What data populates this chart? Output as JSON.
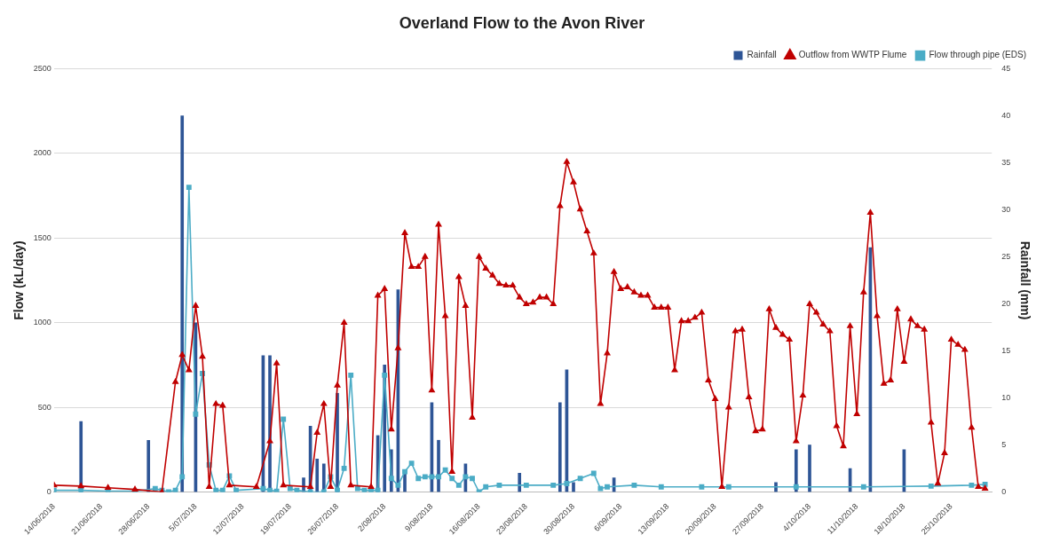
{
  "chart_data": {
    "type": "line",
    "title": "Overland Flow to the Avon River",
    "ylabel": "Flow (kL/day)",
    "y2label": "Rainfall (mm)",
    "xlim": [
      "2018-06-14",
      "2018-10-31"
    ],
    "xticks": [
      {
        "value": "2018-06-14",
        "label": "14/06/2018"
      },
      {
        "value": "2018-06-21",
        "label": "21/06/2018"
      },
      {
        "value": "2018-06-28",
        "label": "28/06/2018"
      },
      {
        "value": "2018-07-05",
        "label": "5/07/2018"
      },
      {
        "value": "2018-07-12",
        "label": "12/07/2018"
      },
      {
        "value": "2018-07-19",
        "label": "19/07/2018"
      },
      {
        "value": "2018-07-26",
        "label": "26/07/2018"
      },
      {
        "value": "2018-08-02",
        "label": "2/08/2018"
      },
      {
        "value": "2018-08-09",
        "label": "9/08/2018"
      },
      {
        "value": "2018-08-16",
        "label": "16/08/2018"
      },
      {
        "value": "2018-08-23",
        "label": "23/08/2018"
      },
      {
        "value": "2018-08-30",
        "label": "30/08/2018"
      },
      {
        "value": "2018-09-06",
        "label": "6/09/2018"
      },
      {
        "value": "2018-09-13",
        "label": "13/09/2018"
      },
      {
        "value": "2018-09-20",
        "label": "20/09/2018"
      },
      {
        "value": "2018-09-27",
        "label": "27/09/2018"
      },
      {
        "value": "2018-10-04",
        "label": "4/10/2018"
      },
      {
        "value": "2018-10-11",
        "label": "11/10/2018"
      },
      {
        "value": "2018-10-18",
        "label": "18/10/2018"
      },
      {
        "value": "2018-10-25",
        "label": "25/10/2018"
      }
    ],
    "ylim": [
      0,
      2500
    ],
    "yticks": [
      0,
      500,
      1000,
      1500,
      2000,
      2500
    ],
    "y2lim": [
      0,
      45
    ],
    "y2ticks": [
      0,
      5,
      10,
      15,
      20,
      25,
      30,
      35,
      40,
      45
    ],
    "grid": "y",
    "legend": "top right",
    "series": [
      {
        "name": "Rainfall",
        "type": "bar",
        "axis": "y2",
        "color": "#2e5596",
        "x": [
          "2018-06-18",
          "2018-06-28",
          "2018-07-02",
          "2018-07-03",
          "2018-07-05",
          "2018-07-15",
          "2018-07-16",
          "2018-07-21",
          "2018-07-22",
          "2018-07-23",
          "2018-07-24",
          "2018-07-26",
          "2018-08-01",
          "2018-08-02",
          "2018-08-03",
          "2018-08-04",
          "2018-08-05",
          "2018-08-09",
          "2018-08-10",
          "2018-08-14",
          "2018-08-17",
          "2018-08-22",
          "2018-08-28",
          "2018-08-29",
          "2018-08-30",
          "2018-09-05",
          "2018-09-29",
          "2018-10-02",
          "2018-10-04",
          "2018-10-10",
          "2018-10-13",
          "2018-10-18"
        ],
        "values": [
          7.5,
          5.5,
          null,
          40,
          18,
          14.5,
          14.5,
          1.5,
          7,
          3.5,
          3,
          10.5,
          6,
          13.5,
          4.5,
          21.5,
          2,
          9.5,
          5.5,
          3,
          null,
          2,
          9.5,
          13,
          1,
          1.5,
          1,
          4.5,
          5,
          2.5,
          26,
          4.5
        ]
      },
      {
        "name": "Outflow from WWTP Flume",
        "type": "line",
        "marker": "triangle",
        "color": "#c00000",
        "x": [
          "2018-06-14",
          "2018-06-18",
          "2018-06-22",
          "2018-06-26",
          "2018-06-30",
          "2018-07-02",
          "2018-07-03",
          "2018-07-04",
          "2018-07-05",
          "2018-07-06",
          "2018-07-07",
          "2018-07-08",
          "2018-07-09",
          "2018-07-10",
          "2018-07-14",
          "2018-07-16",
          "2018-07-17",
          "2018-07-18",
          "2018-07-22",
          "2018-07-23",
          "2018-07-24",
          "2018-07-25",
          "2018-07-26",
          "2018-07-27",
          "2018-07-28",
          "2018-07-31",
          "2018-08-01",
          "2018-08-02",
          "2018-08-03",
          "2018-08-04",
          "2018-08-05",
          "2018-08-06",
          "2018-08-07",
          "2018-08-08",
          "2018-08-09",
          "2018-08-10",
          "2018-08-11",
          "2018-08-12",
          "2018-08-13",
          "2018-08-14",
          "2018-08-15",
          "2018-08-16",
          "2018-08-17",
          "2018-08-18",
          "2018-08-19",
          "2018-08-20",
          "2018-08-21",
          "2018-08-22",
          "2018-08-23",
          "2018-08-24",
          "2018-08-25",
          "2018-08-26",
          "2018-08-27",
          "2018-08-28",
          "2018-08-29",
          "2018-08-30",
          "2018-08-31",
          "2018-09-01",
          "2018-09-02",
          "2018-09-03",
          "2018-09-04",
          "2018-09-05",
          "2018-09-06",
          "2018-09-07",
          "2018-09-08",
          "2018-09-09",
          "2018-09-10",
          "2018-09-11",
          "2018-09-12",
          "2018-09-13",
          "2018-09-14",
          "2018-09-15",
          "2018-09-16",
          "2018-09-17",
          "2018-09-18",
          "2018-09-19",
          "2018-09-20",
          "2018-09-21",
          "2018-09-22",
          "2018-09-23",
          "2018-09-24",
          "2018-09-25",
          "2018-09-26",
          "2018-09-27",
          "2018-09-28",
          "2018-09-29",
          "2018-09-30",
          "2018-10-01",
          "2018-10-02",
          "2018-10-03",
          "2018-10-04",
          "2018-10-05",
          "2018-10-06",
          "2018-10-07",
          "2018-10-08",
          "2018-10-09",
          "2018-10-10",
          "2018-10-11",
          "2018-10-12",
          "2018-10-13",
          "2018-10-14",
          "2018-10-15",
          "2018-10-16",
          "2018-10-17",
          "2018-10-18",
          "2018-10-19",
          "2018-10-20",
          "2018-10-21",
          "2018-10-22",
          "2018-10-23",
          "2018-10-24",
          "2018-10-25",
          "2018-10-26",
          "2018-10-27",
          "2018-10-28",
          "2018-10-29",
          "2018-10-30"
        ],
        "values": [
          40,
          35,
          25,
          15,
          0,
          650,
          810,
          720,
          1100,
          800,
          30,
          520,
          510,
          40,
          30,
          300,
          760,
          40,
          30,
          350,
          520,
          30,
          630,
          1000,
          40,
          30,
          1160,
          1200,
          370,
          850,
          1530,
          1330,
          1330,
          1390,
          600,
          1580,
          1040,
          120,
          1270,
          1100,
          440,
          1390,
          1320,
          1280,
          1230,
          1220,
          1220,
          1150,
          1110,
          1120,
          1150,
          1150,
          1110,
          1690,
          1950,
          1830,
          1670,
          1540,
          1410,
          520,
          820,
          1300,
          1200,
          1210,
          1180,
          1160,
          1160,
          1090,
          1090,
          1090,
          720,
          1010,
          1010,
          1030,
          1060,
          660,
          550,
          30,
          500,
          950,
          960,
          560,
          360,
          370,
          1080,
          970,
          930,
          900,
          300,
          570,
          1110,
          1060,
          990,
          950,
          390,
          270,
          980,
          460,
          1180,
          1650,
          1040,
          640,
          660,
          1080,
          770,
          1020,
          980,
          960,
          410,
          50,
          230,
          900,
          870,
          840,
          380,
          30,
          20
        ]
      },
      {
        "name": "Flow through pipe (EDS)",
        "type": "line",
        "marker": "square",
        "color": "#4bacc6",
        "x": [
          "2018-06-14",
          "2018-06-18",
          "2018-06-22",
          "2018-06-26",
          "2018-06-29",
          "2018-06-30",
          "2018-07-01",
          "2018-07-02",
          "2018-07-03",
          "2018-07-04",
          "2018-07-05",
          "2018-07-06",
          "2018-07-07",
          "2018-07-08",
          "2018-07-09",
          "2018-07-10",
          "2018-07-11",
          "2018-07-15",
          "2018-07-16",
          "2018-07-17",
          "2018-07-18",
          "2018-07-19",
          "2018-07-20",
          "2018-07-22",
          "2018-07-24",
          "2018-07-25",
          "2018-07-26",
          "2018-07-27",
          "2018-07-28",
          "2018-07-29",
          "2018-07-30",
          "2018-07-31",
          "2018-08-01",
          "2018-08-02",
          "2018-08-03",
          "2018-08-04",
          "2018-08-05",
          "2018-08-06",
          "2018-08-07",
          "2018-08-08",
          "2018-08-09",
          "2018-08-10",
          "2018-08-11",
          "2018-08-12",
          "2018-08-13",
          "2018-08-14",
          "2018-08-15",
          "2018-08-16",
          "2018-08-17",
          "2018-08-19",
          "2018-08-23",
          "2018-08-27",
          "2018-08-29",
          "2018-08-31",
          "2018-09-02",
          "2018-09-03",
          "2018-09-04",
          "2018-09-08",
          "2018-09-12",
          "2018-09-18",
          "2018-09-22",
          "2018-10-02",
          "2018-10-12",
          "2018-10-22",
          "2018-10-28",
          "2018-10-30"
        ],
        "values": [
          10,
          10,
          5,
          5,
          20,
          10,
          0,
          10,
          90,
          1800,
          460,
          700,
          160,
          10,
          10,
          95,
          10,
          20,
          10,
          5,
          430,
          20,
          10,
          0,
          0,
          90,
          10,
          140,
          690,
          20,
          10,
          10,
          10,
          690,
          80,
          40,
          120,
          170,
          80,
          90,
          90,
          90,
          130,
          80,
          40,
          90,
          80,
          0,
          30,
          40,
          40,
          40,
          50,
          80,
          110,
          20,
          30,
          40,
          30,
          30,
          30,
          30,
          30,
          35,
          40,
          45
        ]
      }
    ]
  }
}
